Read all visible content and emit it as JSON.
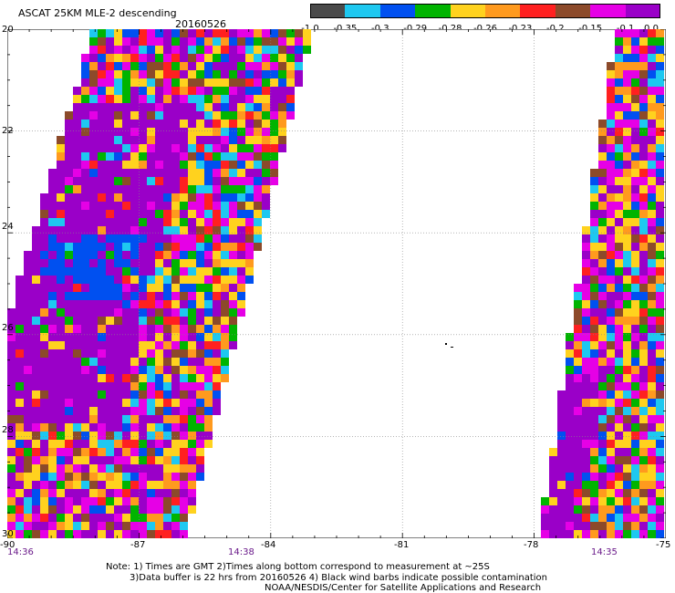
{
  "header": {
    "title": "ASCAT 25KM MLE-2 descending",
    "date": "20160526"
  },
  "colorbar": {
    "colors": [
      "#4a4a4a",
      "#1ec8f0",
      "#0050f0",
      "#00b400",
      "#ffd21e",
      "#ff9a1e",
      "#ff2020",
      "#8c4a2a",
      "#e600e6",
      "#9a00c8"
    ],
    "labels": [
      "-1.0",
      "-0.35",
      "-0.3",
      "-0.29",
      "-0.28",
      "-0.26",
      "-0.23",
      "-0.2",
      "-0.15",
      "-0.1",
      "0.0"
    ]
  },
  "axes": {
    "x_ticks": [
      "-90",
      "-87",
      "-84",
      "-81",
      "-78",
      "-75"
    ],
    "y_ticks": [
      "20",
      "22",
      "24",
      "26",
      "28",
      "30"
    ],
    "xlim": [
      -90,
      -75
    ],
    "ylim": [
      20,
      30
    ]
  },
  "times": {
    "left": "14:36",
    "middle": "14:38",
    "right": "14:35"
  },
  "notes": {
    "line1": "Note: 1) Times are GMT 2)Times along bottom correspond to measurement at ~25S",
    "line2": "3)Data buffer is 22 hrs from 20160526 4) Black wind barbs indicate possible contamination",
    "line3": "NOAA/NESDIS/Center for Satellite Applications and Research"
  }
}
